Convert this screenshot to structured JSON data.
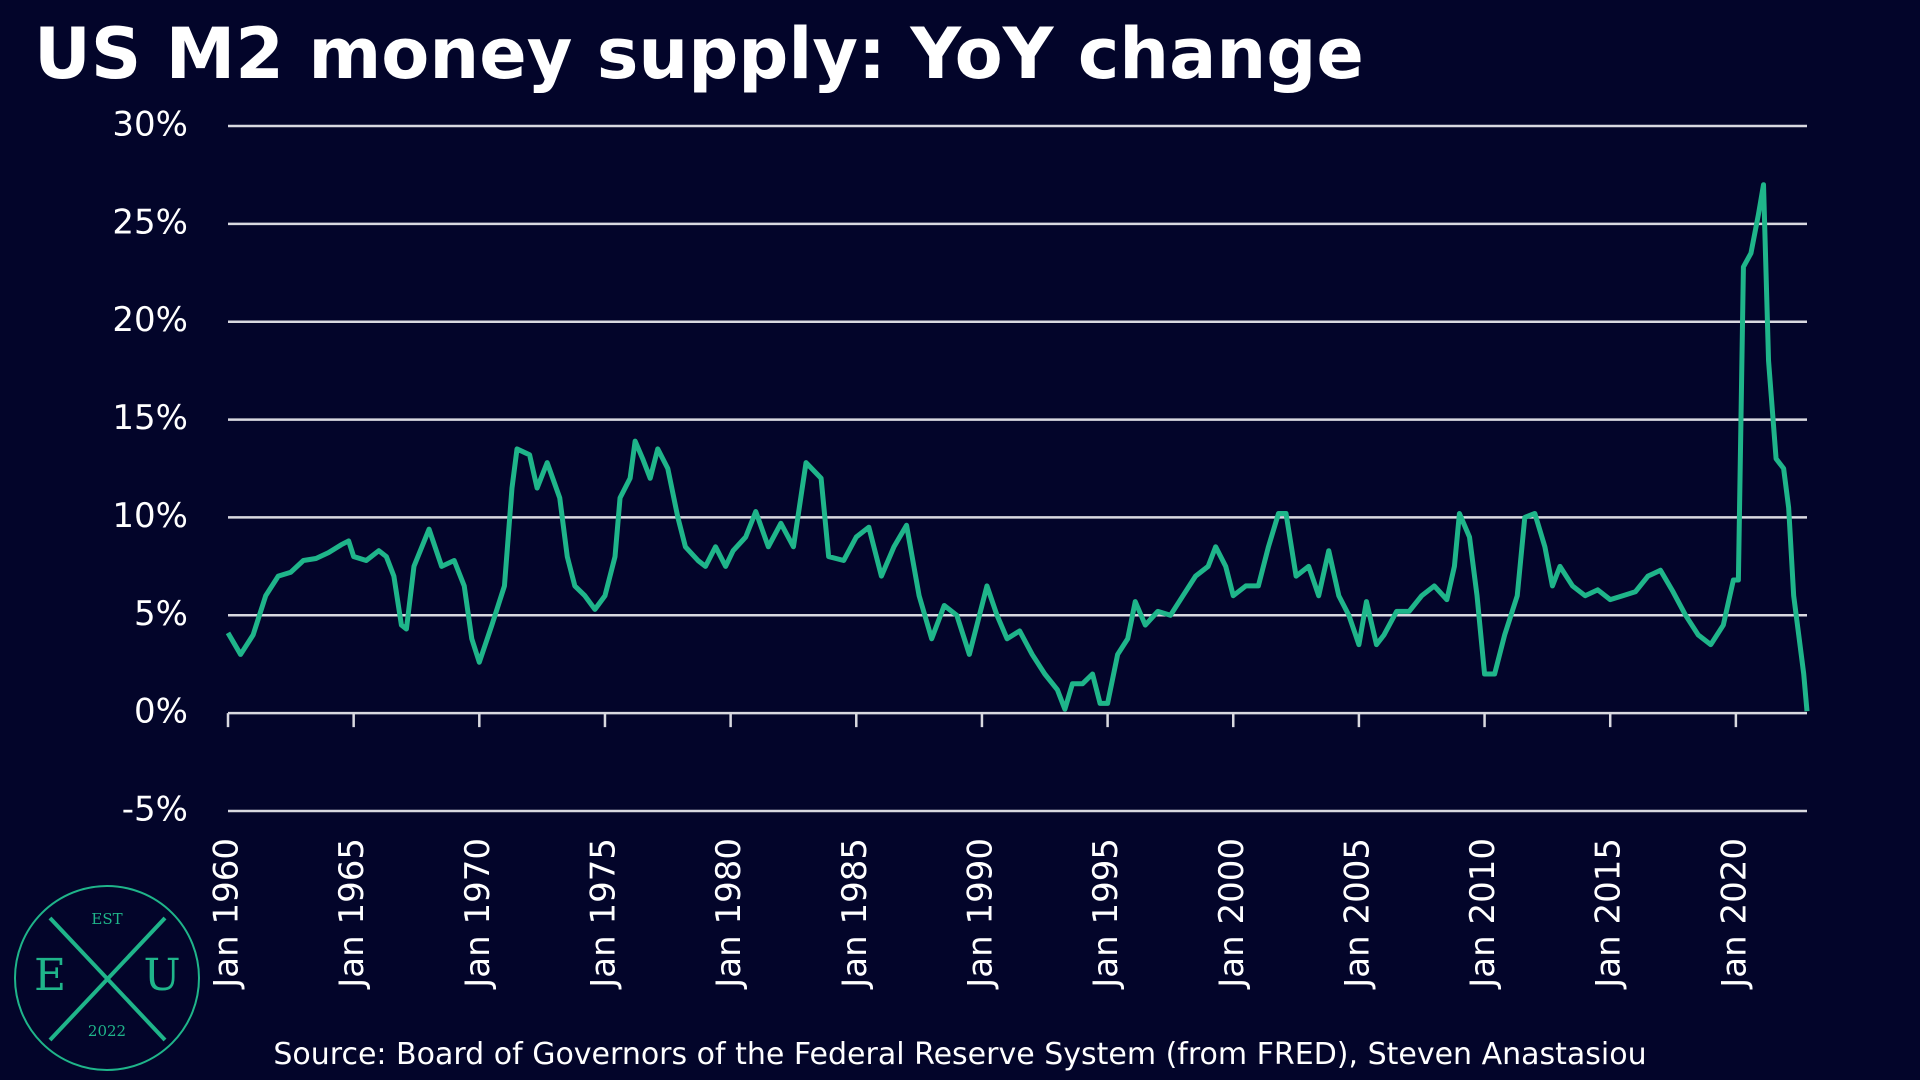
{
  "chart_data": {
    "type": "line",
    "title": "US M2 money supply: YoY change",
    "source": "Source: Board of Governors of the Federal Reserve System (from FRED), Steven Anastasiou",
    "x": [
      1960.0,
      1960.5,
      1961.0,
      1961.5,
      1962.0,
      1962.5,
      1963.0,
      1963.5,
      1964.0,
      1964.5,
      1964.8,
      1965.0,
      1965.5,
      1966.0,
      1966.3,
      1966.6,
      1966.9,
      1967.1,
      1967.4,
      1968.0,
      1968.5,
      1969.0,
      1969.4,
      1969.7,
      1970.0,
      1970.5,
      1971.0,
      1971.3,
      1971.5,
      1972.0,
      1972.3,
      1972.7,
      1973.2,
      1973.5,
      1973.8,
      1974.2,
      1974.6,
      1975.0,
      1975.4,
      1975.6,
      1976.0,
      1976.2,
      1976.5,
      1976.8,
      1977.1,
      1977.5,
      1977.9,
      1978.2,
      1978.7,
      1979.0,
      1979.4,
      1979.8,
      1980.1,
      1980.6,
      1981.0,
      1981.5,
      1982.0,
      1982.5,
      1983.0,
      1983.6,
      1983.9,
      1984.5,
      1985.0,
      1985.5,
      1986.0,
      1986.5,
      1987.0,
      1987.5,
      1988.0,
      1988.5,
      1989.0,
      1989.5,
      1990.0,
      1990.2,
      1990.6,
      1991.0,
      1991.5,
      1992.0,
      1992.5,
      1993.0,
      1993.3,
      1993.6,
      1994.0,
      1994.4,
      1994.7,
      1995.0,
      1995.4,
      1995.8,
      1996.1,
      1996.5,
      1997.0,
      1997.5,
      1998.0,
      1998.5,
      1999.0,
      1999.3,
      1999.7,
      2000.0,
      2000.5,
      2001.0,
      2001.4,
      2001.8,
      2002.1,
      2002.5,
      2003.0,
      2003.4,
      2003.8,
      2004.2,
      2004.6,
      2005.0,
      2005.3,
      2005.7,
      2006.0,
      2006.5,
      2007.0,
      2007.5,
      2008.0,
      2008.5,
      2008.8,
      2009.0,
      2009.4,
      2009.7,
      2010.0,
      2010.4,
      2010.8,
      2011.3,
      2011.6,
      2012.0,
      2012.4,
      2012.7,
      2013.0,
      2013.5,
      2014.0,
      2014.5,
      2015.0,
      2015.5,
      2016.0,
      2016.5,
      2017.0,
      2017.5,
      2018.0,
      2018.5,
      2019.0,
      2019.5,
      2019.9,
      2020.1,
      2020.3,
      2020.6,
      2020.9,
      2021.1,
      2021.3,
      2021.6,
      2021.9,
      2022.1,
      2022.3,
      2022.5,
      2022.7,
      2022.83
    ],
    "series": [
      {
        "color": "#1fb58a",
        "values": [
          4.1,
          3.0,
          4.0,
          6.0,
          7.0,
          7.2,
          7.8,
          7.9,
          8.2,
          8.6,
          8.8,
          8.0,
          7.8,
          8.3,
          8.0,
          7.0,
          4.5,
          4.3,
          7.5,
          9.4,
          7.5,
          7.8,
          6.5,
          3.8,
          2.6,
          4.5,
          6.5,
          11.5,
          13.5,
          13.2,
          11.5,
          12.8,
          11.0,
          8.0,
          6.5,
          6.0,
          5.3,
          6.0,
          8.0,
          11.0,
          12.0,
          13.9,
          13.0,
          12.0,
          13.5,
          12.5,
          10.0,
          8.5,
          7.8,
          7.5,
          8.5,
          7.5,
          8.3,
          9.0,
          10.3,
          8.5,
          9.7,
          8.5,
          12.8,
          12.0,
          8.0,
          7.8,
          9.0,
          9.5,
          7.0,
          8.5,
          9.6,
          6.0,
          3.8,
          5.5,
          5.0,
          3.0,
          5.5,
          6.5,
          5.0,
          3.8,
          4.2,
          3.0,
          2.0,
          1.2,
          0.2,
          1.5,
          1.5,
          2.0,
          0.5,
          0.5,
          3.0,
          3.8,
          5.7,
          4.5,
          5.2,
          5.0,
          6.0,
          7.0,
          7.5,
          8.5,
          7.5,
          6.0,
          6.5,
          6.5,
          8.5,
          10.2,
          10.2,
          7.0,
          7.5,
          6.0,
          8.3,
          6.0,
          5.0,
          3.5,
          5.7,
          3.5,
          4.0,
          5.2,
          5.2,
          6.0,
          6.5,
          5.8,
          7.5,
          10.2,
          9.0,
          6.0,
          2.0,
          2.0,
          4.0,
          6.0,
          10.0,
          10.2,
          8.5,
          6.5,
          7.5,
          6.5,
          6.0,
          6.3,
          5.8,
          6.0,
          6.2,
          7.0,
          7.3,
          6.2,
          5.0,
          4.0,
          3.5,
          4.5,
          6.8,
          6.8,
          22.8,
          23.5,
          25.5,
          27.0,
          18.0,
          13.0,
          12.5,
          10.5,
          6.0,
          4.0,
          2.0,
          0.1
        ]
      }
    ],
    "xlim": [
      1960,
      2022.83
    ],
    "xticks": [
      {
        "value": 1960,
        "label": "Jan 1960"
      },
      {
        "value": 1965,
        "label": "Jan 1965"
      },
      {
        "value": 1970,
        "label": "Jan 1970"
      },
      {
        "value": 1975,
        "label": "Jan 1975"
      },
      {
        "value": 1980,
        "label": "Jan 1980"
      },
      {
        "value": 1985,
        "label": "Jan 1985"
      },
      {
        "value": 1990,
        "label": "Jan 1990"
      },
      {
        "value": 1995,
        "label": "Jan 1995"
      },
      {
        "value": 2000,
        "label": "Jan 2000"
      },
      {
        "value": 2005,
        "label": "Jan 2005"
      },
      {
        "value": 2010,
        "label": "Jan 2010"
      },
      {
        "value": 2015,
        "label": "Jan 2015"
      },
      {
        "value": 2020,
        "label": "Jan 2020"
      }
    ],
    "ylim": [
      -5,
      30
    ],
    "yticks": [
      {
        "value": -5,
        "label": "-5%"
      },
      {
        "value": 0,
        "label": "0%"
      },
      {
        "value": 5,
        "label": "5%"
      },
      {
        "value": 10,
        "label": "10%"
      },
      {
        "value": 15,
        "label": "15%"
      },
      {
        "value": 20,
        "label": "20%"
      },
      {
        "value": 25,
        "label": "25%"
      },
      {
        "value": 30,
        "label": "30%"
      }
    ],
    "grid": true
  },
  "logo": {
    "top": "EST",
    "left": "E",
    "right": "U",
    "bottom": "2022"
  }
}
